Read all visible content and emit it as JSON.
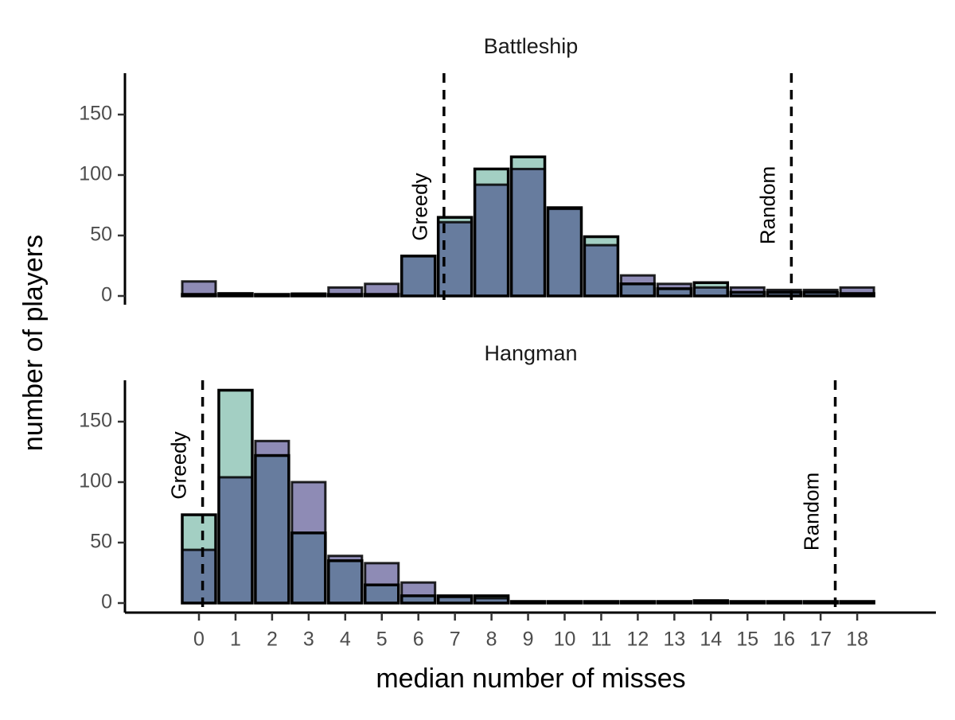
{
  "chart_data": {
    "type": "bar",
    "xlabel": "median number of misses",
    "ylabel": "number of players",
    "ylim": [
      0,
      180
    ],
    "yticks": [
      0,
      50,
      100,
      150
    ],
    "xticks": [
      0,
      1,
      2,
      3,
      4,
      5,
      6,
      7,
      8,
      9,
      10,
      11,
      12,
      13,
      14,
      15,
      16,
      17,
      18
    ],
    "grid": false,
    "colors": {
      "green_series": "#a3cfc3",
      "purple_series": "#8e8bb5",
      "overlap": "#677c9e",
      "outline": "#000000"
    },
    "panels": [
      {
        "title": "Battleship",
        "series": [
          {
            "values": [
              0,
              2,
              1,
              1,
              0,
              1,
              33,
              65,
              105,
              115,
              73,
              49,
              10,
              6,
              11,
              3,
              3,
              3,
              2
            ]
          },
          {
            "values": [
              12,
              2,
              1,
              2,
              7,
              10,
              33,
              61,
              92,
              105,
              72,
              42,
              17,
              10,
              7,
              7,
              5,
              5,
              7
            ]
          }
        ],
        "reference_lines": [
          {
            "label": "Greedy",
            "x": 6.7
          },
          {
            "label": "Random",
            "x": 16.2
          }
        ]
      },
      {
        "title": "Hangman",
        "series": [
          {
            "values": [
              73,
              176,
              122,
              58,
              35,
              15,
              6,
              6,
              6,
              1,
              1,
              1,
              1,
              1,
              2,
              1,
              1,
              0,
              1
            ]
          },
          {
            "values": [
              44,
              104,
              134,
              100,
              39,
              33,
              17,
              5,
              4,
              1,
              1,
              1,
              1,
              1,
              1,
              1,
              1,
              0,
              1
            ]
          }
        ],
        "reference_lines": [
          {
            "label": "Greedy",
            "x": 0.1
          },
          {
            "label": "Random",
            "x": 17.4
          }
        ]
      }
    ]
  }
}
